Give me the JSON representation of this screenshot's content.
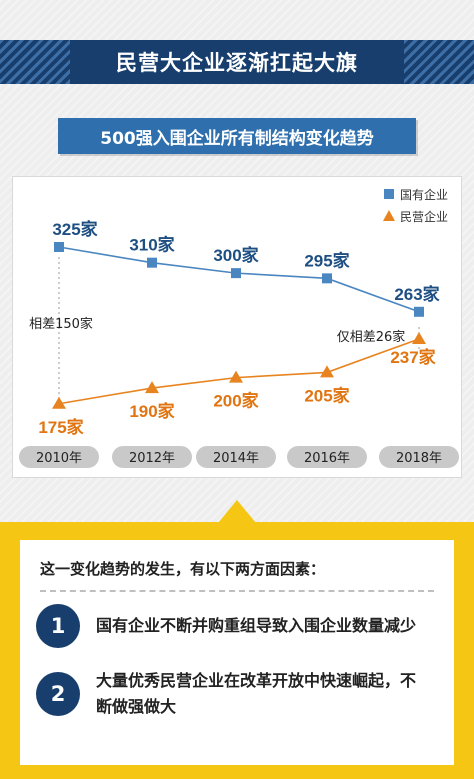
{
  "header": {
    "title": "民营大企业逐渐扛起大旗"
  },
  "subtitle": "500强入围企业所有制结构变化趋势",
  "chart_data": {
    "type": "line",
    "x": [
      "2010年",
      "2012年",
      "2014年",
      "2016年",
      "2018年"
    ],
    "series": [
      {
        "name": "国有企业",
        "values": [
          325,
          310,
          300,
          295,
          263
        ],
        "labels": [
          "325家",
          "310家",
          "300家",
          "295家",
          "263家"
        ],
        "color": "#4a86c0",
        "marker": "square"
      },
      {
        "name": "民营企业",
        "values": [
          175,
          190,
          200,
          205,
          237
        ],
        "labels": [
          "175家",
          "190家",
          "200家",
          "205家",
          "237家"
        ],
        "color": "#e8841f",
        "marker": "triangle"
      }
    ],
    "annotations": [
      {
        "text": "相差150家",
        "year": "2010年"
      },
      {
        "text": "仅相差26家",
        "year": "2018年"
      }
    ],
    "legend_position": "top-right",
    "grid": false
  },
  "reasons": {
    "heading": "这一变化趋势的发生，有以下两方面因素：",
    "items": [
      {
        "num": "1",
        "text": "国有企业不断并购重组导致入围企业数量减少"
      },
      {
        "num": "2",
        "text": "大量优秀民营企业在改革开放中快速崛起，不断做强做大"
      }
    ]
  },
  "colors": {
    "navy": "#173e6d",
    "blue": "#2f6fad",
    "yellow": "#f5c714",
    "orange": "#e8841f"
  }
}
